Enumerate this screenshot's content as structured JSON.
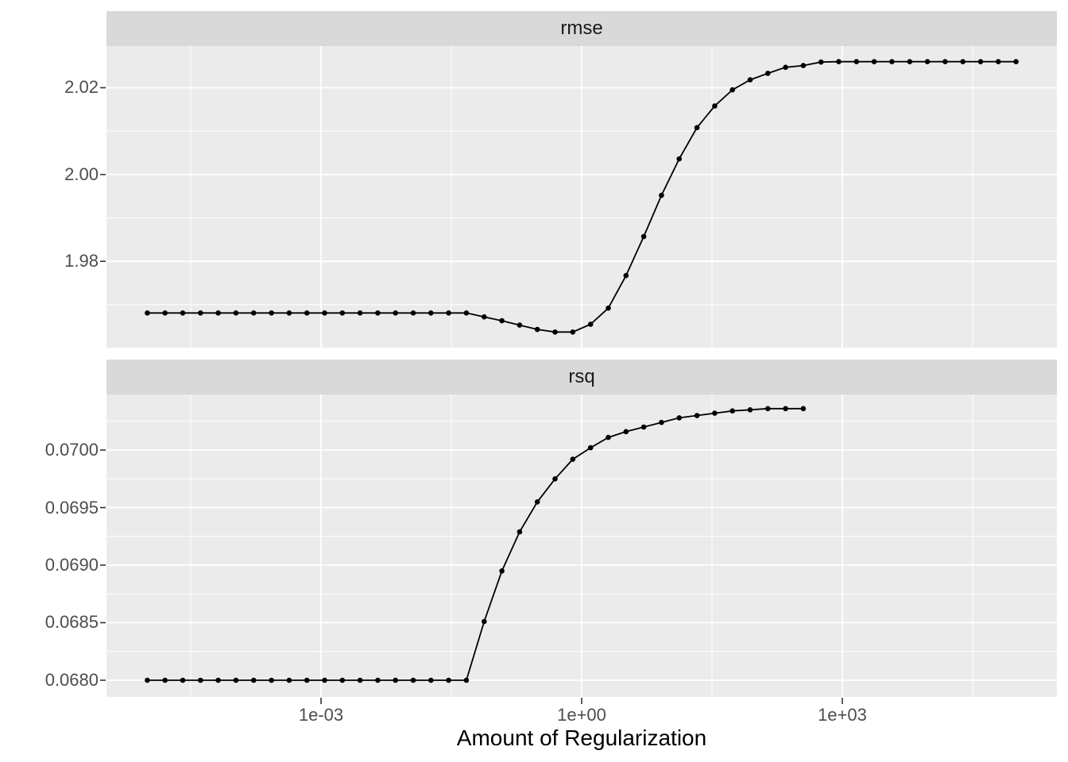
{
  "figure": {
    "background": "#FFFFFF",
    "panel_background": "#EBEBEB",
    "strip_background": "#D9D9D9",
    "gridline_color": "#FFFFFF",
    "series_color": "#000000",
    "tick_mark_color": "#333333",
    "axis_text_color": "#4D4D4D",
    "axis_title_color": "#000000"
  },
  "axis": {
    "x_title": "Amount of Regularization",
    "x_scale": "log10",
    "xlim_log10": [
      -5.47,
      5.47
    ],
    "xticks_log10": [
      -3,
      0,
      3
    ],
    "xtick_labels": [
      "1e-03",
      "1e+00",
      "1e+03"
    ],
    "xminor_log10": [
      -4.5,
      -1.5,
      1.5,
      4.5
    ]
  },
  "chart_data": [
    {
      "type": "line",
      "facet_label": "rmse",
      "legend": "none",
      "grid": true,
      "x_log10": [
        -5.0,
        -4.796,
        -4.592,
        -4.388,
        -4.184,
        -3.98,
        -3.776,
        -3.571,
        -3.367,
        -3.163,
        -2.959,
        -2.755,
        -2.551,
        -2.347,
        -2.143,
        -1.939,
        -1.735,
        -1.531,
        -1.327,
        -1.122,
        -0.918,
        -0.714,
        -0.51,
        -0.306,
        -0.102,
        0.102,
        0.306,
        0.51,
        0.714,
        0.918,
        1.122,
        1.327,
        1.531,
        1.735,
        1.939,
        2.143,
        2.347,
        2.551,
        2.755,
        2.959,
        3.163,
        3.367,
        3.571,
        3.776,
        3.98,
        4.184,
        4.388,
        4.592,
        4.796,
        5.0
      ],
      "y": [
        1.9681,
        1.9681,
        1.9681,
        1.9681,
        1.9681,
        1.9681,
        1.9681,
        1.9681,
        1.9681,
        1.9681,
        1.9681,
        1.9681,
        1.9681,
        1.9681,
        1.9681,
        1.9681,
        1.9681,
        1.9681,
        1.9681,
        1.9672,
        1.9663,
        1.9653,
        1.9643,
        1.9637,
        1.9637,
        1.9655,
        1.9692,
        1.9767,
        1.9857,
        1.9952,
        2.0036,
        2.0108,
        2.0158,
        2.0195,
        2.0218,
        2.0233,
        2.0247,
        2.0251,
        2.0259,
        2.026,
        2.026,
        2.026,
        2.026,
        2.026,
        2.026,
        2.026,
        2.026,
        2.026,
        2.026,
        2.026
      ],
      "ylim": [
        1.9601,
        2.0296
      ],
      "yticks": [
        1.98,
        2.0,
        2.02
      ],
      "ytick_labels": [
        "1.98",
        "2.00",
        "2.02"
      ],
      "yminor": [
        1.97,
        1.99,
        2.01
      ]
    },
    {
      "type": "line",
      "facet_label": "rsq",
      "legend": "none",
      "grid": true,
      "x_log10": [
        -5.0,
        -4.796,
        -4.592,
        -4.388,
        -4.184,
        -3.98,
        -3.776,
        -3.571,
        -3.367,
        -3.163,
        -2.959,
        -2.755,
        -2.551,
        -2.347,
        -2.143,
        -1.939,
        -1.735,
        -1.531,
        -1.327,
        -1.122,
        -0.918,
        -0.714,
        -0.51,
        -0.306,
        -0.102,
        0.102,
        0.306,
        0.51,
        0.714,
        0.918,
        1.122,
        1.327,
        1.531,
        1.735,
        1.939,
        2.143,
        2.347,
        2.551
      ],
      "y": [
        0.068,
        0.068,
        0.068,
        0.068,
        0.068,
        0.068,
        0.068,
        0.068,
        0.068,
        0.068,
        0.068,
        0.068,
        0.068,
        0.068,
        0.068,
        0.068,
        0.068,
        0.068,
        0.068,
        0.06851,
        0.06895,
        0.06929,
        0.06955,
        0.06975,
        0.06992,
        0.07002,
        0.07011,
        0.07016,
        0.0702,
        0.07024,
        0.07028,
        0.0703,
        0.07032,
        0.07034,
        0.07035,
        0.07036,
        0.07036,
        0.07036
      ],
      "ylim": [
        0.067855,
        0.070483
      ],
      "yticks": [
        0.068,
        0.0685,
        0.069,
        0.0695,
        0.07
      ],
      "ytick_labels": [
        "0.0680",
        "0.0685",
        "0.0690",
        "0.0695",
        "0.0700"
      ],
      "yminor": [
        0.06825,
        0.06875,
        0.06925,
        0.06975,
        0.07025
      ]
    }
  ]
}
